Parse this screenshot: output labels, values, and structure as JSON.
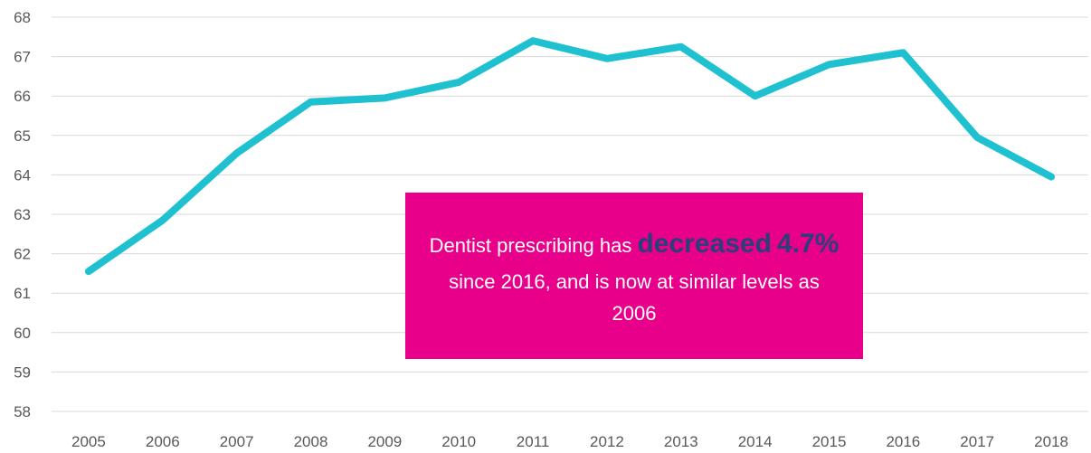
{
  "colors": {
    "line": "#1FC1D1",
    "grid": "#D9D9D9",
    "axis_text": "#595959",
    "callout_bg": "#E8008A",
    "highlight": "#2B3F7A"
  },
  "chart_data": {
    "type": "line",
    "title": "",
    "xlabel": "",
    "ylabel": "",
    "categories": [
      "2005",
      "2006",
      "2007",
      "2008",
      "2009",
      "2010",
      "2011",
      "2012",
      "2013",
      "2014",
      "2015",
      "2016",
      "2017",
      "2018"
    ],
    "series": [
      {
        "values": [
          61.55,
          62.85,
          64.55,
          65.85,
          65.95,
          66.35,
          67.4,
          66.95,
          67.25,
          66.0,
          66.8,
          67.1,
          64.95,
          63.95
        ]
      }
    ],
    "ylim": [
      58,
      68
    ],
    "yticks": [
      "58",
      "59",
      "60",
      "61",
      "62",
      "63",
      "64",
      "65",
      "66",
      "67",
      "68"
    ],
    "grid": true,
    "legend": "none"
  },
  "annotation": {
    "part1": "Dentist prescribing has ",
    "hl1": "decreased",
    "hl2": "4.7%",
    "part2": " since 2016, and is now at similar levels as 2006"
  }
}
